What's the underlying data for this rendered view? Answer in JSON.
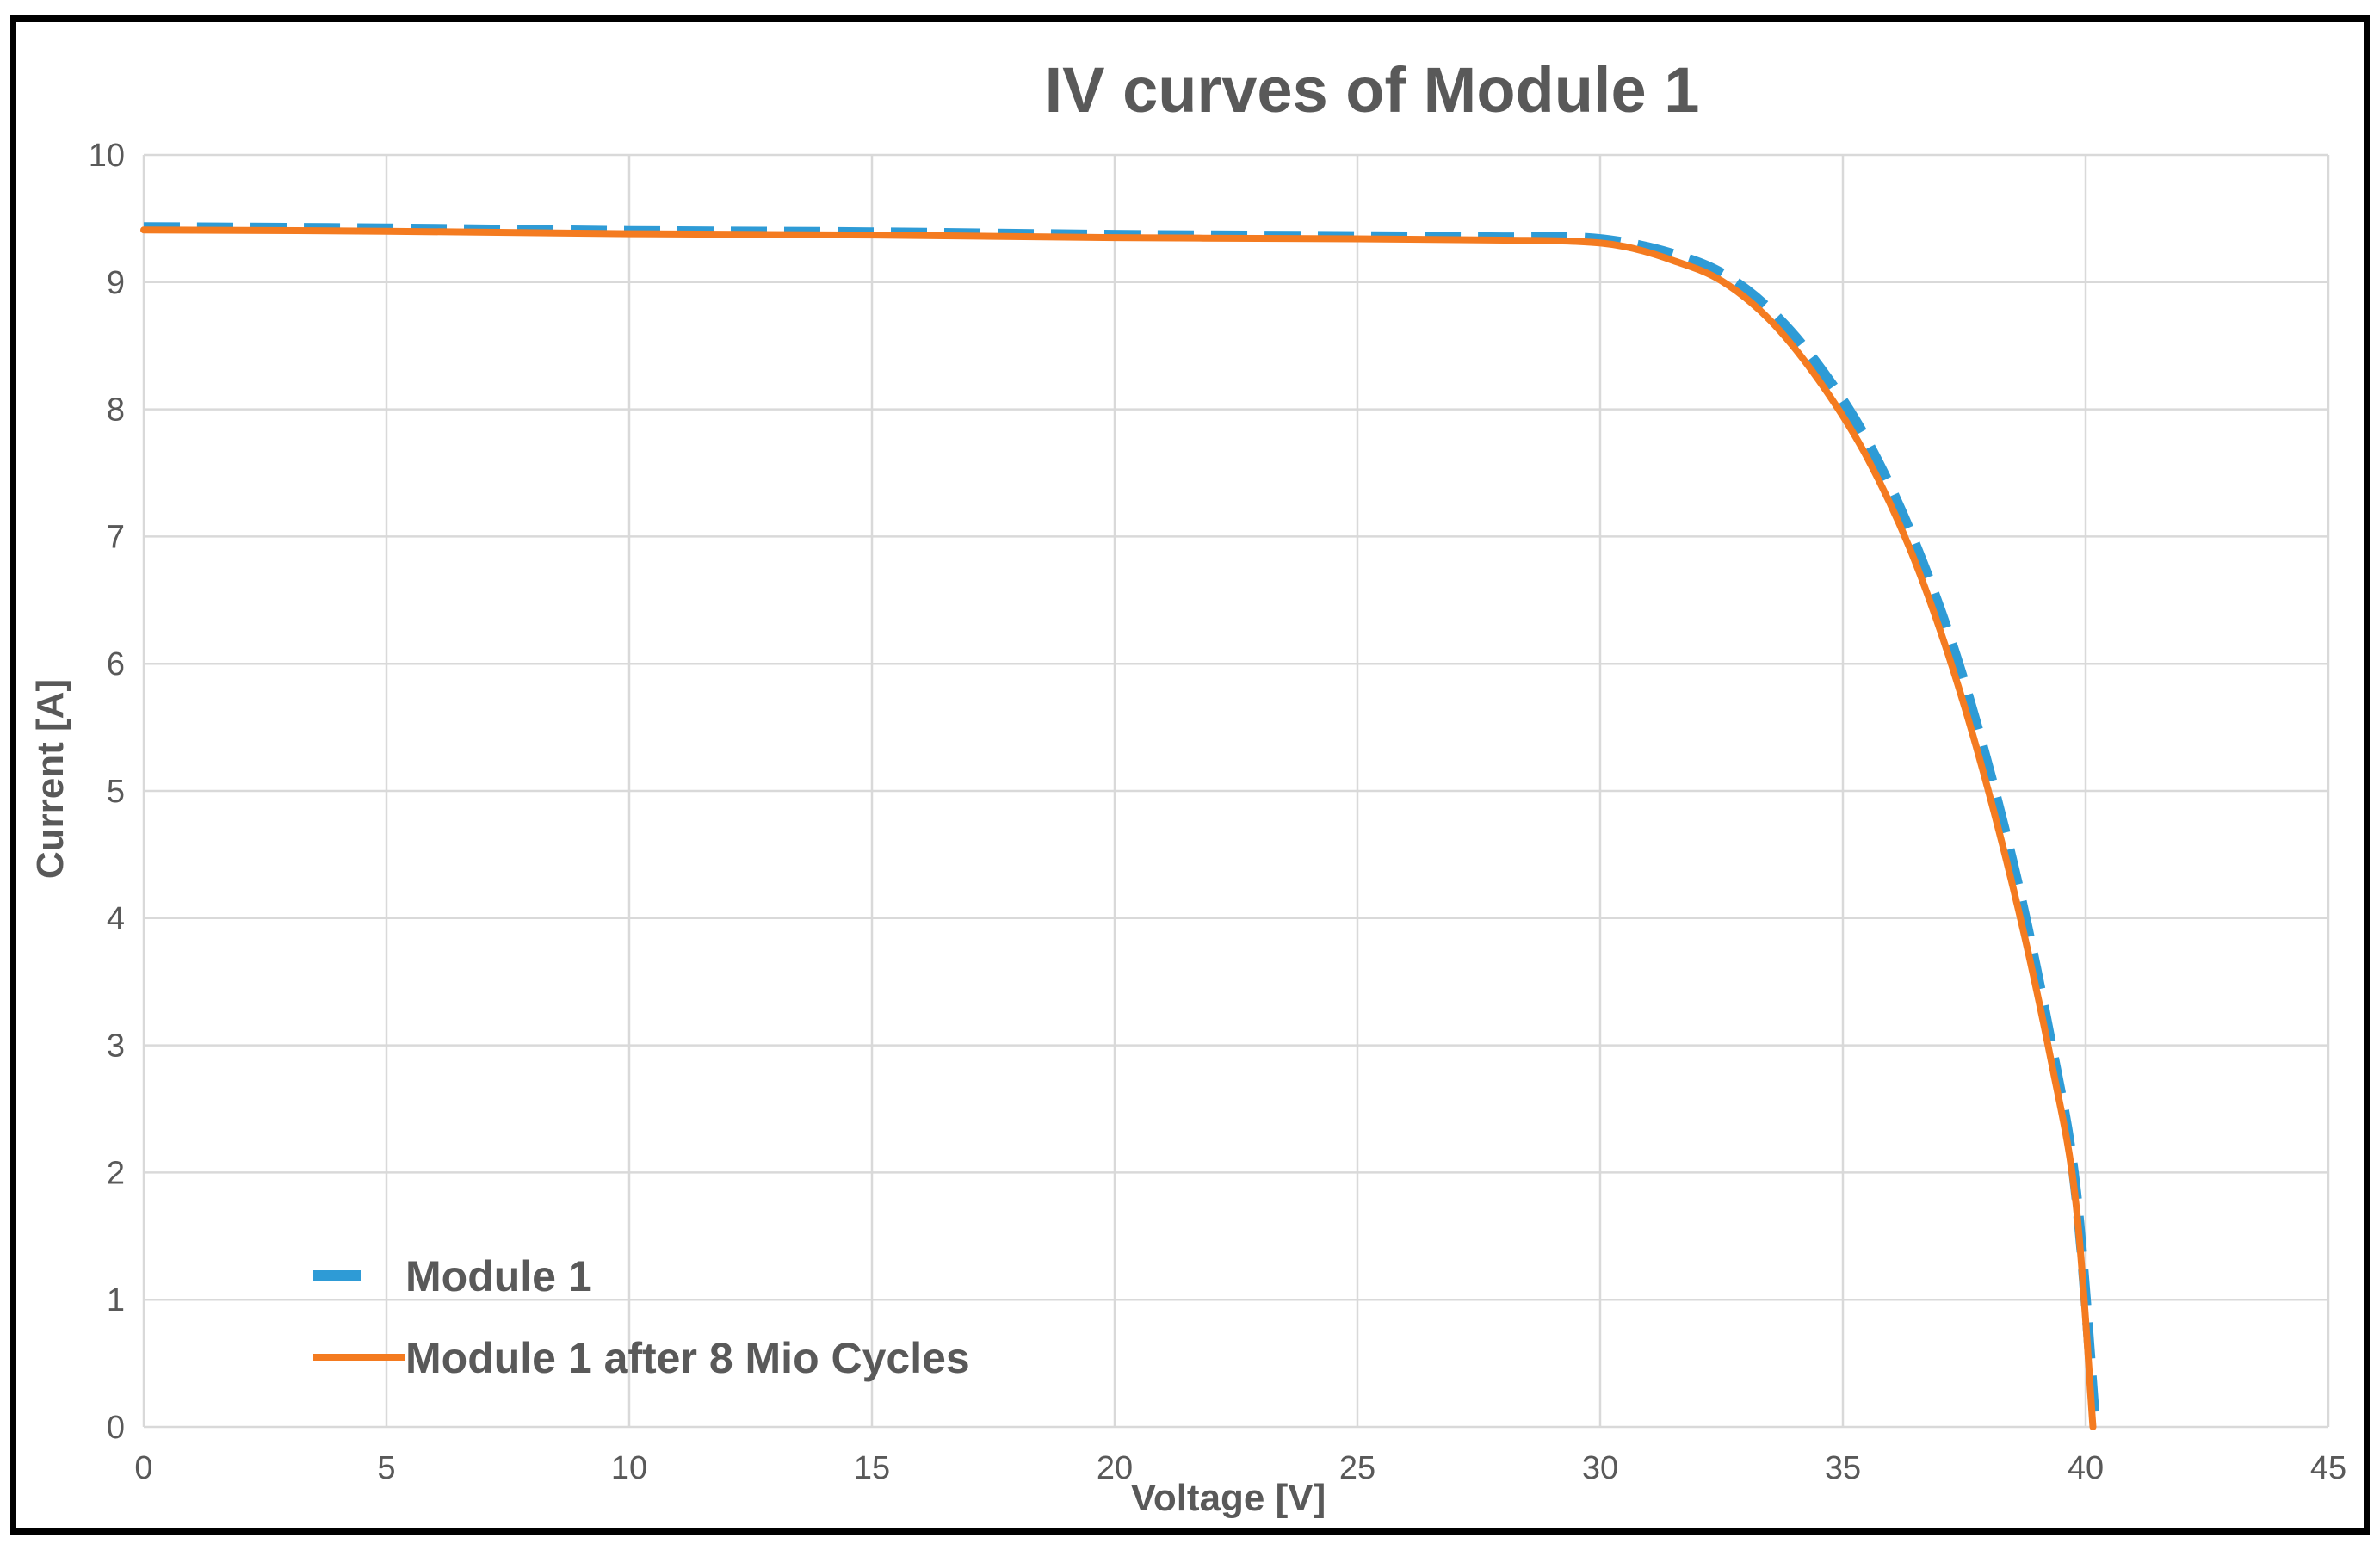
{
  "chart_data": {
    "type": "line",
    "title": "IV curves of Module 1",
    "xlabel": "Voltage [V]",
    "ylabel": "Current [A]",
    "xlim": [
      0,
      45
    ],
    "ylim": [
      0,
      10
    ],
    "xticks": [
      0,
      5,
      10,
      15,
      20,
      25,
      30,
      35,
      40,
      45
    ],
    "yticks": [
      0,
      1,
      2,
      3,
      4,
      5,
      6,
      7,
      8,
      9,
      10
    ],
    "grid": true,
    "legend_position": "bottom-left",
    "series": [
      {
        "name": "Module 1",
        "color": "#2e9bd6",
        "style": "dashed",
        "x": [
          0,
          5,
          10,
          15,
          20,
          25,
          28,
          29.5,
          30.5,
          31.5,
          32.5,
          33.5,
          34.5,
          35.5,
          36.5,
          37.5,
          38.5,
          39.3,
          39.8,
          40.2
        ],
        "y": [
          9.43,
          9.42,
          9.4,
          9.39,
          9.37,
          9.36,
          9.35,
          9.35,
          9.31,
          9.22,
          9.07,
          8.78,
          8.34,
          7.75,
          6.93,
          5.85,
          4.43,
          2.99,
          1.85,
          0.0
        ]
      },
      {
        "name": "Module 1 after 8 Mio Cycles",
        "color": "#f47b20",
        "style": "solid",
        "x": [
          0,
          5,
          10,
          15,
          20,
          25,
          28,
          29.5,
          30.5,
          31.5,
          32.5,
          33.5,
          34.5,
          35.5,
          36.5,
          37.5,
          38.5,
          39.3,
          39.8,
          40.15
        ],
        "y": [
          9.41,
          9.4,
          9.38,
          9.37,
          9.35,
          9.34,
          9.33,
          9.32,
          9.28,
          9.17,
          9.01,
          8.7,
          8.23,
          7.62,
          6.79,
          5.67,
          4.25,
          2.86,
          1.76,
          0.0
        ]
      }
    ]
  }
}
